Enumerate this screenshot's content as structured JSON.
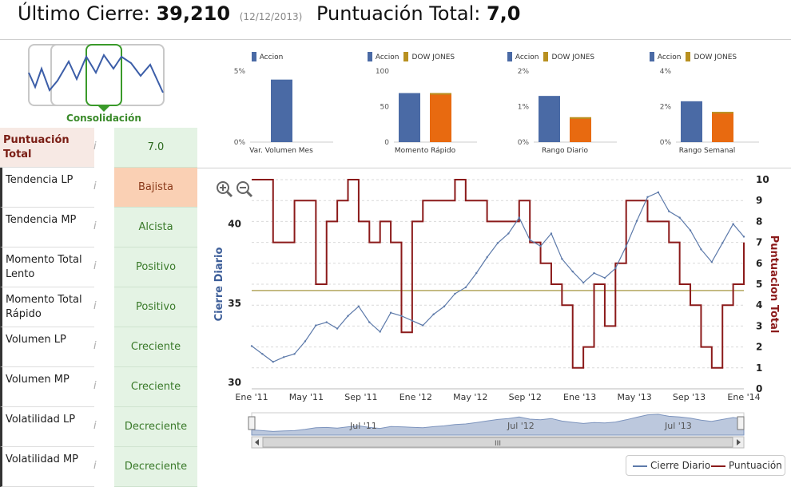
{
  "header": {
    "close_label": "Último Cierre:",
    "close_value": "39,210",
    "close_date": "(12/12/2013)",
    "score_label": "Puntuación Total:",
    "score_value": "7,0"
  },
  "pattern": {
    "label": "Consolidación",
    "color": "#3a8a2a"
  },
  "scores": [
    {
      "label": "Puntuación Total",
      "value": "7.0",
      "status": "positive",
      "total": true
    },
    {
      "label": "Tendencia LP",
      "value": "Bajista",
      "status": "negative"
    },
    {
      "label": "Tendencia MP",
      "value": "Alcista",
      "status": "positive"
    },
    {
      "label": "Momento Total Lento",
      "value": "Positivo",
      "status": "positive"
    },
    {
      "label": "Momento Total Rápido",
      "value": "Positivo",
      "status": "positive"
    },
    {
      "label": "Volumen LP",
      "value": "Creciente",
      "status": "positive"
    },
    {
      "label": "Volumen MP",
      "value": "Creciente",
      "status": "positive"
    },
    {
      "label": "Volatilidad LP",
      "value": "Decreciente",
      "status": "positive"
    },
    {
      "label": "Volatilidad MP",
      "value": "Decreciente",
      "status": "positive"
    }
  ],
  "info_icon": "i",
  "colors": {
    "accion": "#4a6aa5",
    "dow": "#e86a10",
    "dow_swatch": "#b89020",
    "price_line": "#5d7aaa",
    "score_line": "#8b1a1a",
    "score_step": "#d01020",
    "baseline": "#b5a860"
  },
  "legend_labels": {
    "accion": "Accion",
    "dow": "DOW JONES"
  },
  "minicharts": [
    {
      "xlabel": "Var. Volumen Mes",
      "ticks": [
        "5%",
        "0%"
      ],
      "ymax": 5,
      "accion": 4.4,
      "dow": null,
      "legend": [
        "accion"
      ]
    },
    {
      "xlabel": "Momento Rápido",
      "ticks": [
        "100",
        "50",
        "0"
      ],
      "ymax": 100,
      "accion": 69,
      "dow": 69,
      "legend": [
        "accion",
        "dow"
      ]
    },
    {
      "xlabel": "Rango Diario",
      "ticks": [
        "2%",
        "1%",
        "0%"
      ],
      "ymax": 2,
      "accion": 1.3,
      "dow": 0.7,
      "legend": [
        "accion",
        "dow"
      ]
    },
    {
      "xlabel": "Rango Semanal",
      "ticks": [
        "4%",
        "2%",
        "0%"
      ],
      "ymax": 4,
      "accion": 2.3,
      "dow": 1.7,
      "legend": [
        "accion",
        "dow"
      ]
    }
  ],
  "chart_data": {
    "type": "line",
    "ylabel": "Cierre Diario",
    "y2label": "Puntuacion Total",
    "x_ticks": [
      "Ene '11",
      "May '11",
      "Sep '11",
      "Ene '12",
      "May '12",
      "Sep '12",
      "Ene '13",
      "May '13",
      "Sep '13",
      "Ene '14"
    ],
    "y_ticks": [
      "40",
      "35",
      "30"
    ],
    "y2_ticks": [
      "10",
      "9",
      "8",
      "7",
      "6",
      "5",
      "4",
      "3",
      "2",
      "1",
      "0"
    ],
    "ylim": [
      29.6,
      42.8
    ],
    "y2lim": [
      0,
      10
    ],
    "series": [
      {
        "name": "Cierre Diario",
        "x": [
          0,
          0.2,
          0.4,
          0.6,
          0.8,
          1.0,
          1.2,
          1.4,
          1.6,
          1.8,
          2.0,
          2.2,
          2.4,
          2.6,
          2.8,
          3.0,
          3.2,
          3.4,
          3.6,
          3.8,
          4.0,
          4.2,
          4.4,
          4.6,
          4.8,
          5.0,
          5.2,
          5.4,
          5.6,
          5.8,
          6.0,
          6.2,
          6.4,
          6.6,
          6.8,
          7.0,
          7.2,
          7.4,
          7.6,
          7.8,
          8.0,
          8.2,
          8.4,
          8.6,
          8.8,
          9.0,
          9.2
        ],
        "values": [
          32.3,
          31.8,
          31.3,
          31.6,
          31.8,
          32.6,
          33.6,
          33.8,
          33.4,
          34.2,
          34.8,
          33.8,
          33.2,
          34.4,
          34.2,
          33.9,
          33.6,
          34.3,
          34.8,
          35.6,
          36.0,
          36.9,
          37.9,
          38.8,
          39.4,
          40.4,
          39.0,
          38.6,
          39.4,
          37.8,
          37.0,
          36.3,
          36.9,
          36.6,
          37.2,
          38.6,
          40.2,
          41.7,
          42.0,
          40.8,
          40.4,
          39.6,
          38.4,
          37.6,
          38.8,
          40.0,
          39.2
        ]
      },
      {
        "name": "Puntuación",
        "x": [
          0,
          0.2,
          0.4,
          0.6,
          0.8,
          1.0,
          1.2,
          1.4,
          1.6,
          1.8,
          2.0,
          2.2,
          2.4,
          2.6,
          2.8,
          3.0,
          3.2,
          3.4,
          3.6,
          3.8,
          4.0,
          4.2,
          4.4,
          4.6,
          4.8,
          5.0,
          5.2,
          5.4,
          5.6,
          5.8,
          6.0,
          6.2,
          6.4,
          6.6,
          6.8,
          7.0,
          7.2,
          7.4,
          7.6,
          7.8,
          8.0,
          8.2,
          8.4,
          8.6,
          8.8,
          9.0,
          9.2
        ],
        "values": [
          10,
          10,
          7,
          7,
          9,
          9,
          5,
          8,
          9,
          10,
          8,
          7,
          8,
          7,
          2.7,
          8,
          9,
          9,
          9,
          10,
          9,
          9,
          8,
          8,
          8,
          9,
          7,
          6,
          5,
          4,
          1,
          2,
          5,
          3,
          6,
          9,
          9,
          8,
          8,
          7,
          5,
          4,
          2,
          1,
          4,
          5,
          7
        ]
      }
    ]
  },
  "navigator": {
    "labels": [
      "Jul '11",
      "Jul '12",
      "Jul '13"
    ],
    "scroll_glyph": "III"
  },
  "legend": {
    "price": "Cierre Diario",
    "score": "Puntuación"
  }
}
